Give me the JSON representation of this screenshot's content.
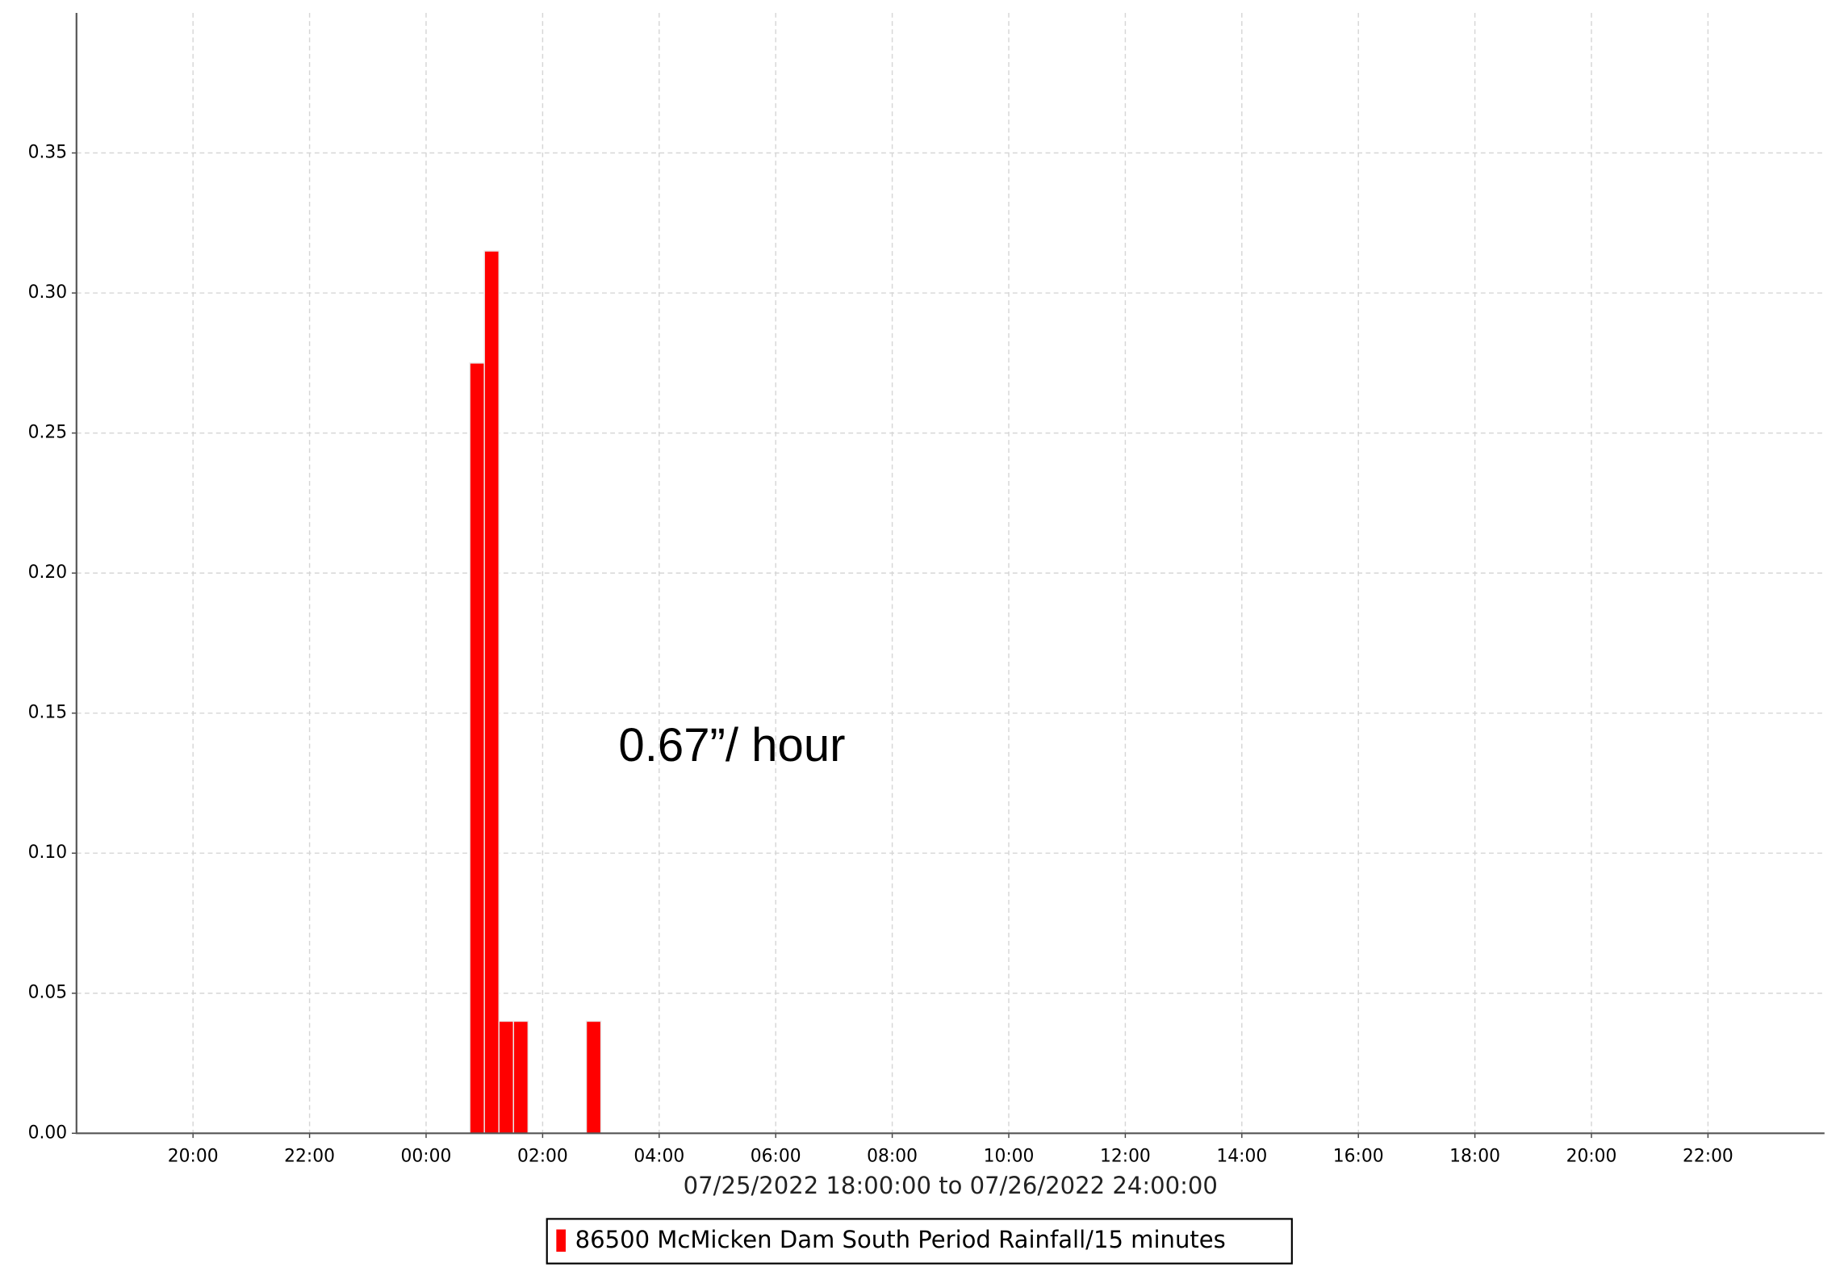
{
  "chart_data": {
    "type": "bar",
    "xlabel": "07/25/2022 18:00:00 to 07/26/2022 24:00:00",
    "annotation": "0.67”/ hour",
    "x": [
      "2022-07-26 00:45",
      "2022-07-26 01:00",
      "2022-07-26 01:15",
      "2022-07-26 01:30",
      "2022-07-26 02:45"
    ],
    "x_end": [
      "2022-07-26 01:00",
      "2022-07-26 01:15",
      "2022-07-26 01:30",
      "2022-07-26 01:45",
      "2022-07-26 03:00"
    ],
    "series": [
      {
        "name": "86500 McMicken Dam South Period Rainfall/15 minutes",
        "color": "#ff0000",
        "values": [
          0.275,
          0.315,
          0.04,
          0.04,
          0.04
        ]
      }
    ],
    "xlim": [
      "2022-07-25 18:00",
      "2022-07-27 00:00"
    ],
    "xticks": [
      {
        "value": "2022-07-25 20:00",
        "label": "20:00"
      },
      {
        "value": "2022-07-25 22:00",
        "label": "22:00"
      },
      {
        "value": "2022-07-26 00:00",
        "label": "00:00"
      },
      {
        "value": "2022-07-26 02:00",
        "label": "02:00"
      },
      {
        "value": "2022-07-26 04:00",
        "label": "04:00"
      },
      {
        "value": "2022-07-26 06:00",
        "label": "06:00"
      },
      {
        "value": "2022-07-26 08:00",
        "label": "08:00"
      },
      {
        "value": "2022-07-26 10:00",
        "label": "10:00"
      },
      {
        "value": "2022-07-26 12:00",
        "label": "12:00"
      },
      {
        "value": "2022-07-26 14:00",
        "label": "14:00"
      },
      {
        "value": "2022-07-26 16:00",
        "label": "16:00"
      },
      {
        "value": "2022-07-26 18:00",
        "label": "18:00"
      },
      {
        "value": "2022-07-26 20:00",
        "label": "20:00"
      },
      {
        "value": "2022-07-26 22:00",
        "label": "22:00"
      }
    ],
    "ylim": [
      0,
      0.4
    ],
    "yticks": [
      {
        "value": 0,
        "label": "0.00"
      },
      {
        "value": 0.05,
        "label": "0.05"
      },
      {
        "value": 0.1,
        "label": "0.10"
      },
      {
        "value": 0.15,
        "label": "0.15"
      },
      {
        "value": 0.2,
        "label": "0.20"
      },
      {
        "value": 0.25,
        "label": "0.25"
      },
      {
        "value": 0.3,
        "label": "0.30"
      },
      {
        "value": 0.35,
        "label": "0.35"
      }
    ],
    "grid": true
  }
}
